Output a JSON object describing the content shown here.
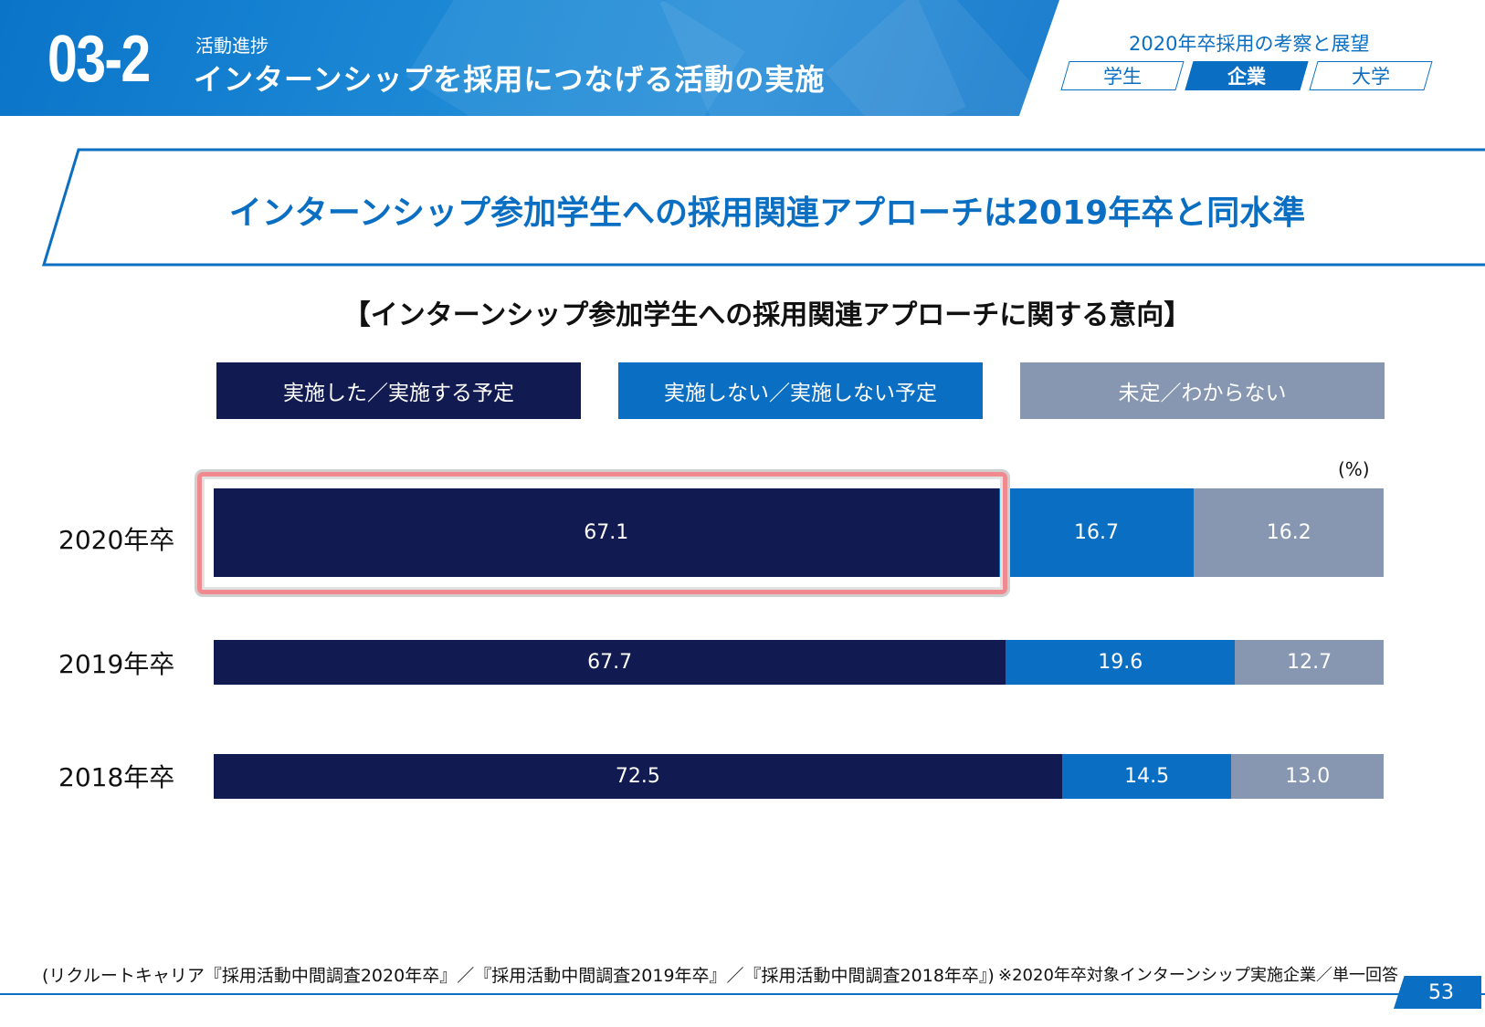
{
  "header": {
    "section_number": "03-2",
    "kicker": "活動進捗",
    "title": "インターンシップを採用につなげる活動の実施",
    "report_title": "2020年卒採用の考察と展望",
    "tabs": [
      {
        "label": "学生",
        "active": false
      },
      {
        "label": "企業",
        "active": true
      },
      {
        "label": "大学",
        "active": false
      }
    ]
  },
  "headline": "インターンシップ参加学生への採用関連アプローチは2019年卒と同水準",
  "chart_data": {
    "type": "bar",
    "orientation": "horizontal",
    "stacked": true,
    "title": "【インターンシップ参加学生への採用関連アプローチに関する意向】",
    "unit": "(%)",
    "categories": [
      "2020年卒",
      "2019年卒",
      "2018年卒"
    ],
    "series": [
      {
        "name": "実施した／実施する予定",
        "color": "#121a52",
        "values": [
          67.1,
          67.7,
          72.5
        ],
        "labels": [
          "67.1",
          "67.7",
          "72.5"
        ]
      },
      {
        "name": "実施しない／実施しない予定",
        "color": "#0a6fc2",
        "values": [
          16.7,
          19.6,
          14.5
        ],
        "labels": [
          "16.7",
          "19.6",
          "14.5"
        ]
      },
      {
        "name": "未定／わからない",
        "color": "#8797b2",
        "values": [
          16.2,
          12.7,
          13.0
        ],
        "labels": [
          "16.2",
          "12.7",
          "13.0"
        ]
      }
    ],
    "xlim": [
      0,
      100
    ],
    "grid": false,
    "legend_position": "top",
    "highlight": {
      "category": "2020年卒",
      "series": "実施した／実施する予定",
      "color": "#f08a8f"
    }
  },
  "footer": {
    "source": "(リクルートキャリア『採用活動中間調査2020年卒』／『採用活動中間調査2019年卒』／『採用活動中間調査2018年卒』)",
    "note": "※2020年卒対象インターンシップ実施企業／単一回答",
    "page_number": "53"
  },
  "colors": {
    "brand_blue": "#0a6fc2",
    "navy": "#121a52",
    "grey_blue": "#8797b2",
    "highlight": "#f08a8f"
  }
}
